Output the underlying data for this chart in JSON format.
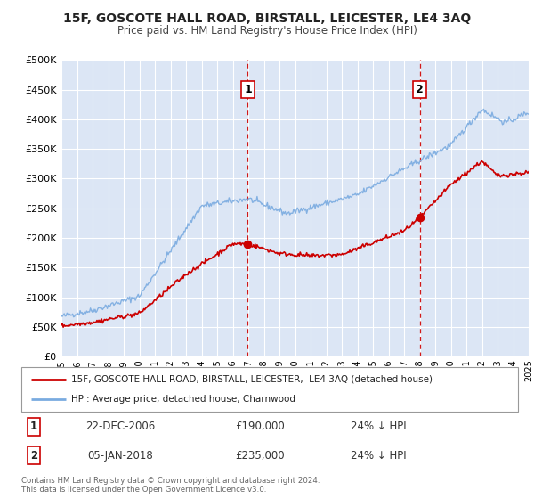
{
  "title": "15F, GOSCOTE HALL ROAD, BIRSTALL, LEICESTER, LE4 3AQ",
  "subtitle": "Price paid vs. HM Land Registry's House Price Index (HPI)",
  "legend_label_red": "15F, GOSCOTE HALL ROAD, BIRSTALL, LEICESTER,  LE4 3AQ (detached house)",
  "legend_label_blue": "HPI: Average price, detached house, Charnwood",
  "annotation1_date": "22-DEC-2006",
  "annotation1_price": "£190,000",
  "annotation1_hpi": "24% ↓ HPI",
  "annotation2_date": "05-JAN-2018",
  "annotation2_price": "£235,000",
  "annotation2_hpi": "24% ↓ HPI",
  "sale1_x": 2006.97,
  "sale1_y": 190000,
  "sale2_x": 2018.02,
  "sale2_y": 235000,
  "vline1_x": 2006.97,
  "vline2_x": 2018.02,
  "ylim": [
    0,
    500000
  ],
  "xlim": [
    1995,
    2025
  ],
  "yticks": [
    0,
    50000,
    100000,
    150000,
    200000,
    250000,
    300000,
    350000,
    400000,
    450000,
    500000
  ],
  "plot_bg_color": "#dce6f5",
  "red_color": "#cc0000",
  "blue_color": "#7aabe0",
  "grid_color": "#ffffff",
  "footnote": "Contains HM Land Registry data © Crown copyright and database right 2024.\nThis data is licensed under the Open Government Licence v3.0."
}
